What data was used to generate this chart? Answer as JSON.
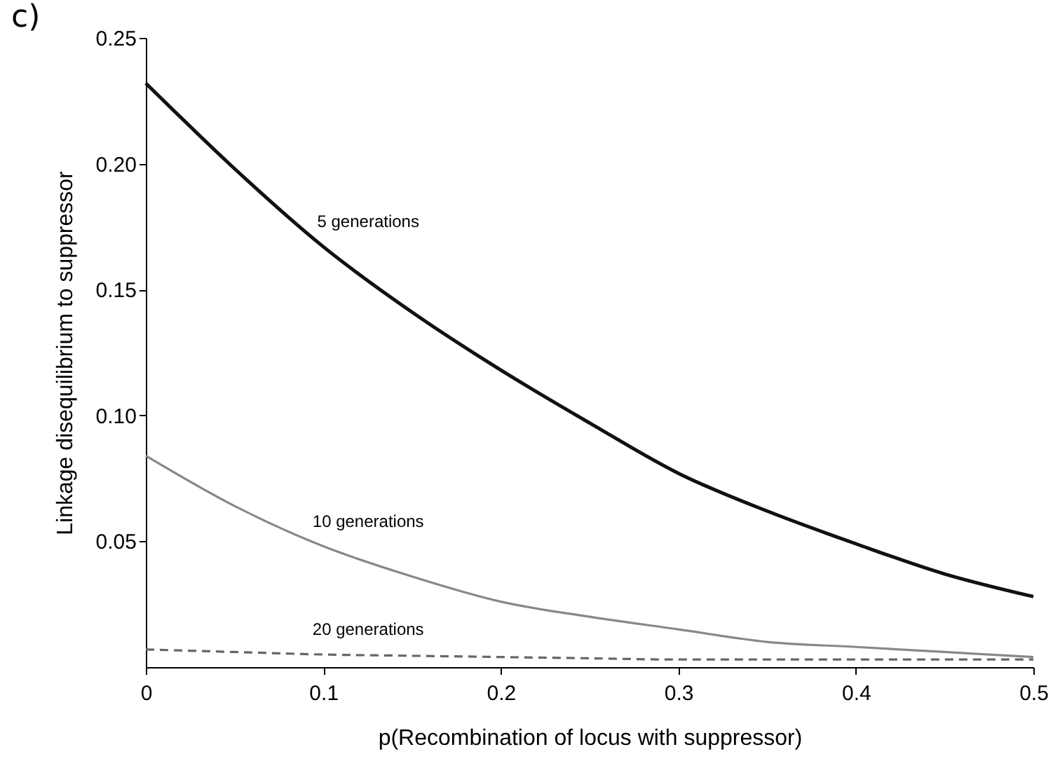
{
  "chart_data": {
    "type": "line",
    "xlabel": "p(Recombination of locus with suppressor)",
    "ylabel": "Linkage disequilibrium to suppressor",
    "x": [
      0,
      0.05,
      0.1,
      0.15,
      0.2,
      0.25,
      0.3,
      0.35,
      0.4,
      0.45,
      0.5
    ],
    "series": [
      {
        "name": "5 generations",
        "color": "#111111",
        "line_style": "solid",
        "values": [
          0.232,
          0.198,
          0.167,
          0.141,
          0.118,
          0.097,
          0.077,
          0.062,
          0.049,
          0.037,
          0.028
        ]
      },
      {
        "name": "10 generations",
        "color": "#888888",
        "line_style": "solid",
        "values": [
          0.084,
          0.064,
          0.048,
          0.036,
          0.026,
          0.02,
          0.015,
          0.01,
          0.008,
          0.006,
          0.004
        ]
      },
      {
        "name": "20 generations",
        "color": "#666666",
        "line_style": "dashed",
        "values": [
          0.007,
          0.006,
          0.005,
          0.0045,
          0.004,
          0.0035,
          0.003,
          0.003,
          0.003,
          0.003,
          0.003
        ]
      }
    ],
    "xlim": [
      0,
      0.5
    ],
    "xticks": [
      0,
      0.1,
      0.2,
      0.3,
      0.4,
      0.5
    ],
    "ylim": [
      0,
      0.25
    ],
    "yticks": [
      0.05,
      {
        "value": 0.1,
        "label": "0.10"
      },
      0.15,
      {
        "value": 0.2,
        "label": "0.20"
      },
      0.25
    ],
    "annotations": [
      "c)"
    ],
    "marker": "none"
  }
}
